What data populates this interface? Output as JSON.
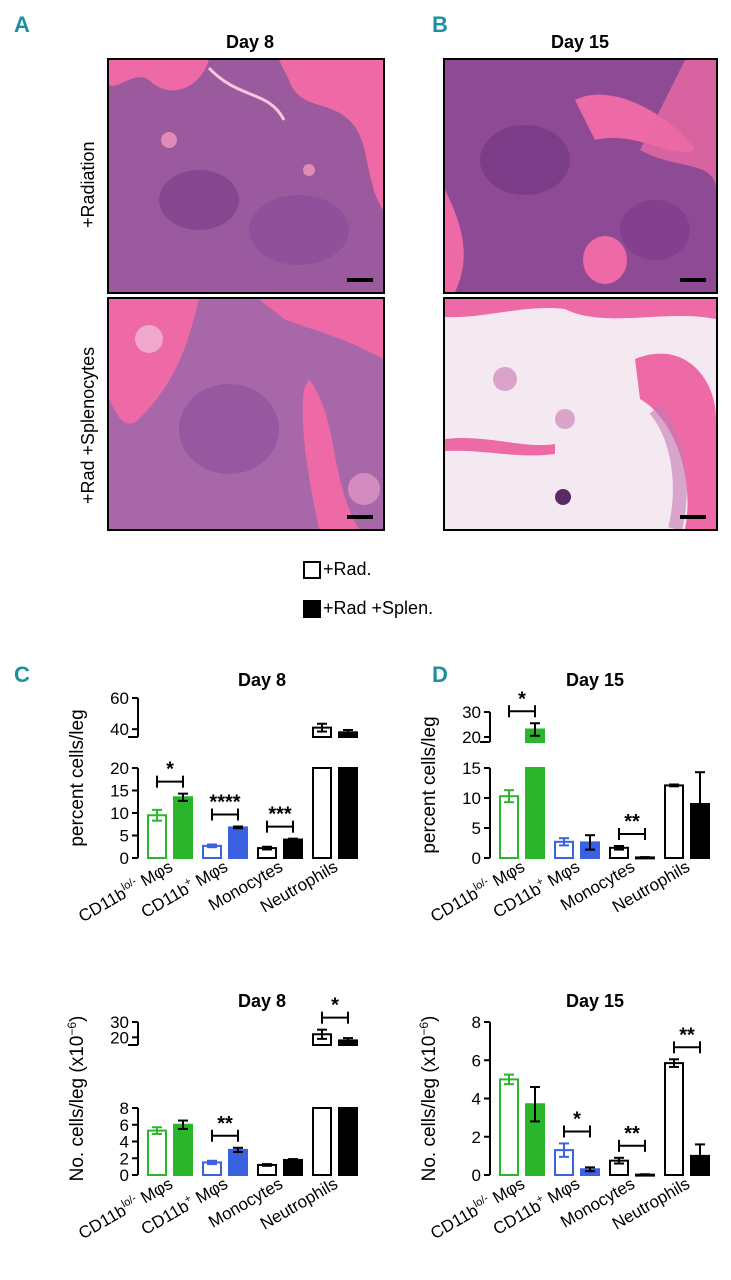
{
  "panels": {
    "A": {
      "letter": "A",
      "title": "Day 8"
    },
    "B": {
      "letter": "B",
      "title": "Day 15"
    },
    "C": {
      "letter": "C"
    },
    "D": {
      "letter": "D"
    }
  },
  "histology": {
    "row_labels": [
      "+Radiation",
      "+Rad +Splenocytes"
    ]
  },
  "legend": [
    {
      "label": "+Rad.",
      "fill": "#ffffff"
    },
    {
      "label": "+Rad +Splen.",
      "fill": "#000000"
    }
  ],
  "colors": {
    "green": "#2bb52b",
    "blue": "#3a62e0",
    "black": "#000000",
    "tissue_pink": "#e8609e",
    "cell_purple": "#6a2f7e",
    "panel_letter": "#1f8fa0"
  },
  "chart_data": [
    {
      "id": "C-top",
      "type": "bar",
      "title": "Day 8",
      "ylabel": "percent cells/leg",
      "categories": [
        "CD11b",
        "CD11b",
        "Monocytes",
        "Neutrophils"
      ],
      "category_superscripts": [
        "lo/-",
        "+",
        "",
        ""
      ],
      "category_suffixes": [
        " Mφs",
        " Mφs",
        "",
        ""
      ],
      "category_colors": [
        "green",
        "blue",
        "black",
        "black"
      ],
      "series": [
        {
          "name": "+Rad.",
          "values": [
            9.5,
            2.7,
            2.2,
            41
          ],
          "errors": [
            1.2,
            0.3,
            0.3,
            2.5
          ]
        },
        {
          "name": "+Rad +Splen.",
          "values": [
            13.5,
            6.8,
            4.1,
            38
          ],
          "errors": [
            0.8,
            0.2,
            0.2,
            1.5
          ]
        }
      ],
      "y_segments": [
        {
          "range": [
            0,
            20
          ],
          "ticks": [
            "0",
            "5",
            "10",
            "15",
            "20"
          ]
        },
        {
          "range": [
            35,
            60
          ],
          "ticks": [
            "40",
            "60"
          ]
        }
      ],
      "significance": [
        {
          "category": 0,
          "label": "*"
        },
        {
          "category": 1,
          "label": "****"
        },
        {
          "category": 2,
          "label": "***"
        }
      ]
    },
    {
      "id": "D-top",
      "type": "bar",
      "title": "Day 15",
      "ylabel": "percent cells/leg",
      "categories": [
        "CD11b",
        "CD11b",
        "Monocytes",
        "Neutrophils"
      ],
      "category_superscripts": [
        "lo/-",
        "+",
        "",
        ""
      ],
      "category_suffixes": [
        " Mφs",
        " Mφs",
        "",
        ""
      ],
      "category_colors": [
        "green",
        "blue",
        "black",
        "black"
      ],
      "series": [
        {
          "name": "+Rad.",
          "values": [
            10.3,
            2.7,
            1.7,
            12.1
          ],
          "errors": [
            1.0,
            0.6,
            0.3,
            0.15
          ]
        },
        {
          "name": "+Rad +Splen.",
          "values": [
            23,
            2.6,
            0.1,
            9
          ],
          "errors": [
            2.5,
            1.2,
            0.05,
            5.3
          ]
        }
      ],
      "y_segments": [
        {
          "range": [
            0,
            15
          ],
          "ticks": [
            "0",
            "5",
            "10",
            "15"
          ]
        },
        {
          "range": [
            18,
            30
          ],
          "ticks": [
            "20",
            "30"
          ]
        }
      ],
      "significance": [
        {
          "category": 0,
          "label": "*"
        },
        {
          "category": 2,
          "label": "**"
        }
      ]
    },
    {
      "id": "C-bottom",
      "type": "bar",
      "title": "Day 8",
      "ylabel": "No. cells/leg (x10",
      "ylabel_superscript": "−6",
      "ylabel_end": ")",
      "categories": [
        "CD11b",
        "CD11b",
        "Monocytes",
        "Neutrophils"
      ],
      "category_superscripts": [
        "lo/-",
        "+",
        "",
        ""
      ],
      "category_suffixes": [
        " Mφs",
        " Mφs",
        "",
        ""
      ],
      "category_colors": [
        "green",
        "blue",
        "black",
        "black"
      ],
      "series": [
        {
          "name": "+Rad.",
          "values": [
            5.3,
            1.5,
            1.2,
            22
          ],
          "errors": [
            0.4,
            0.2,
            0.1,
            3
          ]
        },
        {
          "name": "+Rad +Splen.",
          "values": [
            6.0,
            3.0,
            1.8,
            18
          ],
          "errors": [
            0.5,
            0.25,
            0.1,
            1.5
          ]
        }
      ],
      "y_segments": [
        {
          "range": [
            0,
            8
          ],
          "ticks": [
            "0",
            "2",
            "4",
            "6",
            "8"
          ]
        },
        {
          "range": [
            15,
            30
          ],
          "ticks": [
            "20",
            "30"
          ]
        }
      ],
      "significance": [
        {
          "category": 1,
          "label": "**"
        },
        {
          "category": 3,
          "label": "*"
        }
      ]
    },
    {
      "id": "D-bottom",
      "type": "bar",
      "title": "Day 15",
      "ylabel": "No. cells/leg (x10",
      "ylabel_superscript": "−6",
      "ylabel_end": ")",
      "categories": [
        "CD11b",
        "CD11b",
        "Monocytes",
        "Neutrophils"
      ],
      "category_superscripts": [
        "lo/-",
        "+",
        "",
        ""
      ],
      "category_suffixes": [
        " Mφs",
        " Mφs",
        "",
        ""
      ],
      "category_colors": [
        "green",
        "blue",
        "black",
        "black"
      ],
      "series": [
        {
          "name": "+Rad.",
          "values": [
            5.0,
            1.3,
            0.75,
            5.85
          ],
          "errors": [
            0.25,
            0.35,
            0.15,
            0.2
          ]
        },
        {
          "name": "+Rad +Splen.",
          "values": [
            3.7,
            0.3,
            0.02,
            1.0
          ],
          "errors": [
            0.9,
            0.1,
            0.02,
            0.6
          ]
        }
      ],
      "y_segments": [
        {
          "range": [
            0,
            8
          ],
          "ticks": [
            "0",
            "2",
            "4",
            "6",
            "8"
          ]
        }
      ],
      "significance": [
        {
          "category": 1,
          "label": "*"
        },
        {
          "category": 2,
          "label": "**"
        },
        {
          "category": 3,
          "label": "**"
        }
      ]
    }
  ]
}
